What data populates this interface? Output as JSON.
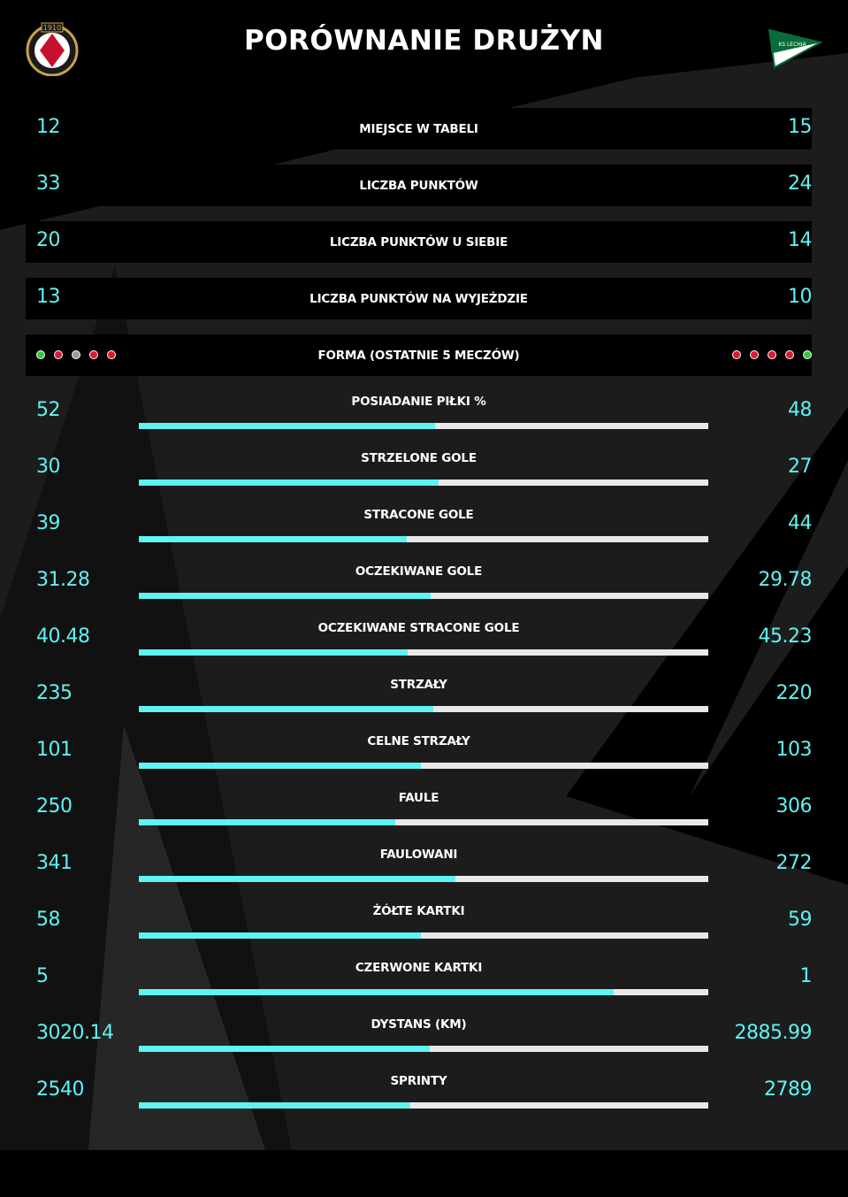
{
  "title": "PORÓWNANIE DRUŻYN",
  "teams": {
    "left": {
      "logo_icon": "widzew-crest-icon",
      "logo_text": "1910"
    },
    "right": {
      "logo_icon": "lechia-pennant-icon",
      "logo_text": "KS LECHIA"
    }
  },
  "colors": {
    "accent": "#5ff3f3",
    "track": "#e8e8e8",
    "win": "#2ecc40",
    "loss": "#e0182d",
    "draw": "#9a9a9a",
    "background": "#000000"
  },
  "simple_rows": [
    {
      "label": "MIEJSCE W TABELI",
      "left": "12",
      "right": "15"
    },
    {
      "label": "LICZBA PUNKTÓW",
      "left": "33",
      "right": "24"
    },
    {
      "label": "LICZBA PUNKTÓW U SIEBIE",
      "left": "20",
      "right": "14"
    },
    {
      "label": "LICZBA PUNKTÓW NA WYJEŹDZIE",
      "left": "13",
      "right": "10"
    }
  ],
  "form": {
    "label": "FORMA (OSTATNIE 5 MECZÓW)",
    "left": [
      "win",
      "loss",
      "draw",
      "loss",
      "loss"
    ],
    "right": [
      "loss",
      "loss",
      "loss",
      "loss",
      "win"
    ]
  },
  "chart_data": {
    "type": "bar",
    "orientation": "horizontal-stacked-share",
    "categories": [
      "POSIADANIE PIŁKI %",
      "STRZELONE GOLE",
      "STRACONE GOLE",
      "OCZEKIWANE GOLE",
      "OCZEKIWANE STRACONE GOLE",
      "STRZAŁY",
      "CELNE STRZAŁY",
      "FAULE",
      "FAULOWANI",
      "ŻÓŁTE KARTKI",
      "CZERWONE KARTKI",
      "DYSTANS (KM)",
      "SPRINTY"
    ],
    "series": [
      {
        "values": [
          52,
          30,
          39,
          31.28,
          40.48,
          235,
          101,
          250,
          341,
          58,
          5,
          3020.14,
          2540
        ],
        "labels": [
          "52",
          "30",
          "39",
          "31.28",
          "40.48",
          "235",
          "101",
          "250",
          "341",
          "58",
          "5",
          "3020.14",
          "2540"
        ]
      },
      {
        "values": [
          48,
          27,
          44,
          29.78,
          45.23,
          220,
          103,
          306,
          272,
          59,
          1,
          2885.99,
          2789
        ],
        "labels": [
          "48",
          "27",
          "44",
          "29.78",
          "45.23",
          "220",
          "103",
          "306",
          "272",
          "59",
          "1",
          "2885.99",
          "2789"
        ]
      }
    ]
  }
}
